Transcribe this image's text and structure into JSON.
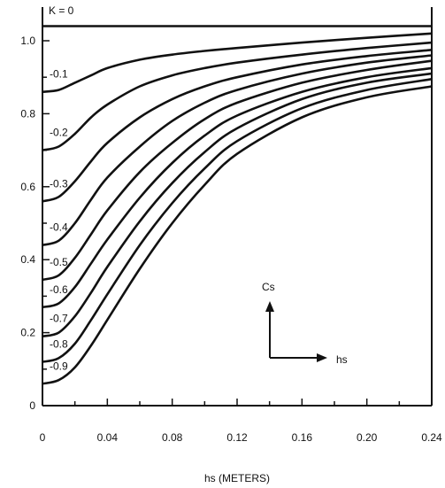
{
  "chart_data": {
    "type": "line",
    "title": "",
    "xlabel": "hs (METERS)",
    "ylabel": "",
    "xlim": [
      0,
      0.24
    ],
    "ylim": [
      0,
      1.04
    ],
    "grid": false,
    "x_ticks": [
      0,
      0.04,
      0.08,
      0.12,
      0.16,
      0.2,
      0.24
    ],
    "x_tick_labels": [
      "0",
      "0.04",
      "0.08",
      "0.12",
      "0.16",
      "0.20",
      "0.24"
    ],
    "y_ticks": [
      0,
      0.2,
      0.4,
      0.6,
      0.8,
      1.0
    ],
    "y_tick_labels": [
      "0",
      "0.2",
      "0.4",
      "0.6",
      "0.8",
      "1.0"
    ],
    "series": [
      {
        "name": "K = 0",
        "x": [
          0,
          0.02,
          0.04,
          0.08,
          0.12,
          0.16,
          0.2,
          0.24
        ],
        "y": [
          1.04,
          1.04,
          1.04,
          1.04,
          1.04,
          1.04,
          1.04,
          1.04
        ]
      },
      {
        "name": "-0.1",
        "x": [
          0,
          0.01,
          0.02,
          0.03,
          0.04,
          0.06,
          0.08,
          0.1,
          0.12,
          0.16,
          0.2,
          0.24
        ],
        "y": [
          0.86,
          0.865,
          0.885,
          0.905,
          0.925,
          0.948,
          0.962,
          0.972,
          0.98,
          0.995,
          1.008,
          1.02
        ]
      },
      {
        "name": "-0.2",
        "x": [
          0,
          0.01,
          0.02,
          0.03,
          0.04,
          0.06,
          0.08,
          0.1,
          0.12,
          0.16,
          0.2,
          0.24
        ],
        "y": [
          0.7,
          0.71,
          0.745,
          0.79,
          0.825,
          0.875,
          0.905,
          0.925,
          0.94,
          0.962,
          0.98,
          0.995
        ]
      },
      {
        "name": "-0.3",
        "x": [
          0,
          0.01,
          0.02,
          0.03,
          0.04,
          0.06,
          0.08,
          0.1,
          0.12,
          0.16,
          0.2,
          0.24
        ],
        "y": [
          0.56,
          0.572,
          0.615,
          0.67,
          0.72,
          0.79,
          0.84,
          0.875,
          0.9,
          0.935,
          0.958,
          0.975
        ]
      },
      {
        "name": "-0.4",
        "x": [
          0,
          0.01,
          0.02,
          0.03,
          0.04,
          0.06,
          0.08,
          0.1,
          0.12,
          0.16,
          0.2,
          0.24
        ],
        "y": [
          0.44,
          0.452,
          0.5,
          0.565,
          0.625,
          0.71,
          0.78,
          0.83,
          0.865,
          0.91,
          0.94,
          0.96
        ]
      },
      {
        "name": "-0.5",
        "x": [
          0,
          0.01,
          0.02,
          0.03,
          0.04,
          0.06,
          0.08,
          0.1,
          0.12,
          0.16,
          0.2,
          0.24
        ],
        "y": [
          0.345,
          0.357,
          0.405,
          0.47,
          0.535,
          0.64,
          0.72,
          0.785,
          0.83,
          0.885,
          0.92,
          0.945
        ]
      },
      {
        "name": "-0.6",
        "x": [
          0,
          0.01,
          0.02,
          0.03,
          0.04,
          0.06,
          0.08,
          0.1,
          0.12,
          0.16,
          0.2,
          0.24
        ],
        "y": [
          0.27,
          0.28,
          0.325,
          0.39,
          0.455,
          0.57,
          0.665,
          0.74,
          0.795,
          0.86,
          0.9,
          0.925
        ]
      },
      {
        "name": "-0.7",
        "x": [
          0,
          0.01,
          0.02,
          0.03,
          0.04,
          0.06,
          0.08,
          0.1,
          0.12,
          0.16,
          0.2,
          0.24
        ],
        "y": [
          0.19,
          0.2,
          0.245,
          0.31,
          0.38,
          0.505,
          0.61,
          0.695,
          0.76,
          0.84,
          0.885,
          0.91
        ]
      },
      {
        "name": "-0.8",
        "x": [
          0,
          0.01,
          0.02,
          0.03,
          0.04,
          0.06,
          0.08,
          0.1,
          0.12,
          0.16,
          0.2,
          0.24
        ],
        "y": [
          0.12,
          0.13,
          0.17,
          0.235,
          0.305,
          0.44,
          0.555,
          0.65,
          0.725,
          0.815,
          0.865,
          0.895
        ]
      },
      {
        "name": "-0.9",
        "x": [
          0,
          0.01,
          0.02,
          0.03,
          0.04,
          0.06,
          0.08,
          0.1,
          0.12,
          0.16,
          0.2,
          0.24
        ],
        "y": [
          0.06,
          0.07,
          0.105,
          0.165,
          0.235,
          0.375,
          0.5,
          0.605,
          0.69,
          0.79,
          0.845,
          0.875
        ]
      }
    ],
    "inset": {
      "vertical_label": "Cs",
      "horizontal_label": "hs"
    }
  }
}
